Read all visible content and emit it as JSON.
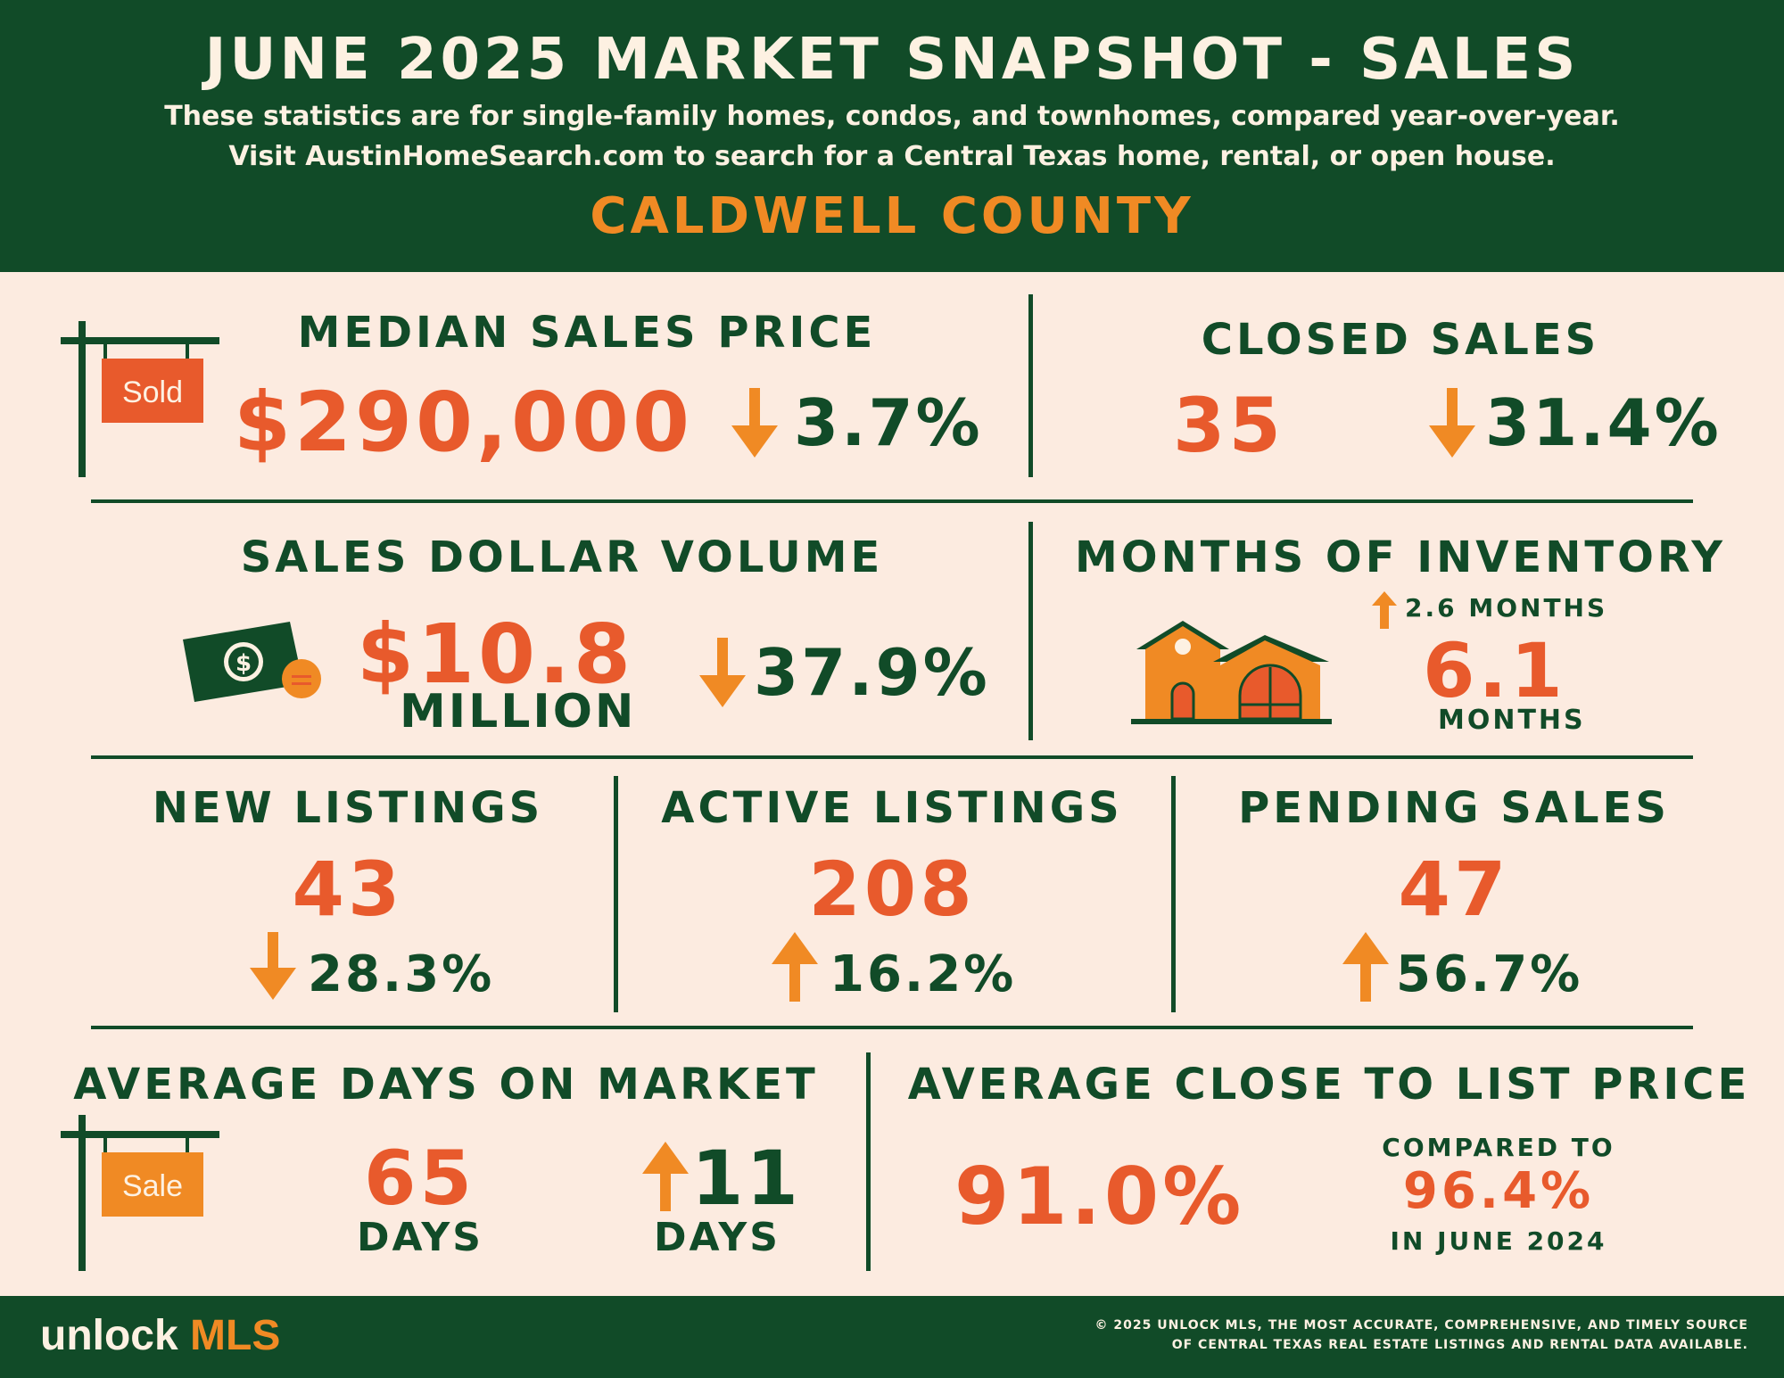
{
  "header": {
    "title": "JUNE 2025 MARKET SNAPSHOT - SALES",
    "subtitle_line1": "These statistics are for single-family homes, condos, and townhomes, compared year-over-year.",
    "subtitle_line2": "Visit AustinHomeSearch.com to search for a Central Texas home, rental, or open house.",
    "county": "CALDWELL COUNTY"
  },
  "median_sales_price": {
    "label": "MEDIAN SALES PRICE",
    "value": "$290,000",
    "change": "3.7%",
    "direction": "down",
    "sign_text": "Sold"
  },
  "closed_sales": {
    "label": "CLOSED SALES",
    "value": "35",
    "change": "31.4%",
    "direction": "down"
  },
  "sales_dollar_volume": {
    "label": "SALES DOLLAR VOLUME",
    "value": "$10.8",
    "unit": "MILLION",
    "change": "37.9%",
    "direction": "down"
  },
  "months_of_inventory": {
    "label": "MONTHS OF INVENTORY",
    "change": "2.6  MONTHS",
    "direction": "up",
    "value": "6.1",
    "unit": "MONTHS"
  },
  "new_listings": {
    "label": "NEW LISTINGS",
    "value": "43",
    "change": "28.3%",
    "direction": "down"
  },
  "active_listings": {
    "label": "ACTIVE LISTINGS",
    "value": "208",
    "change": "16.2%",
    "direction": "up"
  },
  "pending_sales": {
    "label": "PENDING SALES",
    "value": "47",
    "change": "56.7%",
    "direction": "up"
  },
  "avg_days_on_market": {
    "label": "AVERAGE DAYS ON MARKET",
    "value": "65",
    "unit": "DAYS",
    "change": "11",
    "change_unit": "DAYS",
    "direction": "up",
    "sign_text": "Sale"
  },
  "avg_close_to_list": {
    "label": "AVERAGE CLOSE TO LIST PRICE",
    "value": "91.0%",
    "compared_label": "COMPARED TO",
    "compared_value": "96.4%",
    "compared_period": "IN JUNE 2024"
  },
  "footer": {
    "logo_word": "unlock",
    "logo_mls": "MLS",
    "copyright_line1": "© 2025 UNLOCK MLS, THE MOST ACCURATE, COMPREHENSIVE, AND TIMELY SOURCE",
    "copyright_line2": "OF CENTRAL TEXAS REAL ESTATE LISTINGS AND RENTAL DATA AVAILABLE."
  },
  "colors": {
    "dark_green": "#114b28",
    "orange_red": "#e85a2c",
    "orange": "#f08a24",
    "background": "#fcebe0"
  }
}
